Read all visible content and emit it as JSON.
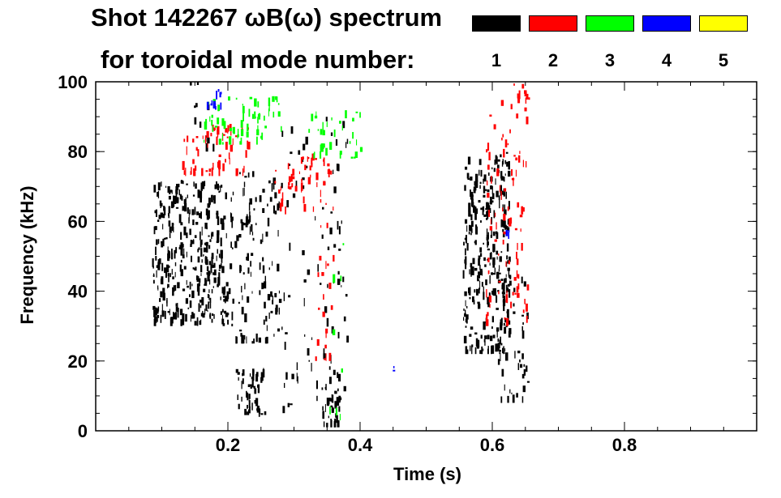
{
  "chart_data": {
    "type": "heatmap",
    "title_line1": "Shot 142267 ωB(ω) spectrum",
    "title_line2": "for toroidal mode number:",
    "xlabel": "Time (s)",
    "ylabel": "Frequency (kHz)",
    "xlim": [
      0.0,
      1.0
    ],
    "ylim": [
      0,
      100
    ],
    "xticks": [
      {
        "value": 0.2,
        "label": "0.2"
      },
      {
        "value": 0.4,
        "label": "0.4"
      },
      {
        "value": 0.6,
        "label": "0.6"
      },
      {
        "value": 0.8,
        "label": "0.8"
      }
    ],
    "yticks": [
      {
        "value": 0,
        "label": "0"
      },
      {
        "value": 20,
        "label": "20"
      },
      {
        "value": 40,
        "label": "40"
      },
      {
        "value": 60,
        "label": "60"
      },
      {
        "value": 80,
        "label": "80"
      },
      {
        "value": 100,
        "label": "100"
      }
    ],
    "legend": [
      {
        "mode": "1",
        "color": "#000000"
      },
      {
        "mode": "2",
        "color": "#ff0000"
      },
      {
        "mode": "3",
        "color": "#00ff00"
      },
      {
        "mode": "4",
        "color": "#0000ff"
      },
      {
        "mode": "5",
        "color": "#ffff00"
      }
    ],
    "regions": [
      {
        "mode": "1",
        "t": [
          0.085,
          0.195
        ],
        "f": [
          30,
          72
        ],
        "density": 0.85
      },
      {
        "mode": "1",
        "t": [
          0.195,
          0.28
        ],
        "f": [
          25,
          75
        ],
        "density": 0.35
      },
      {
        "mode": "1",
        "t": [
          0.21,
          0.255
        ],
        "f": [
          4,
          18
        ],
        "density": 0.9
      },
      {
        "mode": "1",
        "t": [
          0.28,
          0.38
        ],
        "f": [
          5,
          90
        ],
        "density": 0.12
      },
      {
        "mode": "1",
        "t": [
          0.34,
          0.37
        ],
        "f": [
          1,
          18
        ],
        "density": 0.85
      },
      {
        "mode": "1",
        "t": [
          0.555,
          0.625
        ],
        "f": [
          22,
          80
        ],
        "density": 0.85
      },
      {
        "mode": "1",
        "t": [
          0.605,
          0.655
        ],
        "f": [
          8,
          45
        ],
        "density": 0.35
      },
      {
        "mode": "1",
        "t": [
          0.14,
          0.18
        ],
        "f": [
          80,
          100
        ],
        "density": 0.15
      },
      {
        "mode": "2",
        "t": [
          0.13,
          0.23
        ],
        "f": [
          73,
          88
        ],
        "density": 0.5
      },
      {
        "mode": "2",
        "t": [
          0.27,
          0.36
        ],
        "f": [
          62,
          80
        ],
        "density": 0.35
      },
      {
        "mode": "2",
        "t": [
          0.33,
          0.36
        ],
        "f": [
          20,
          60
        ],
        "density": 0.2
      },
      {
        "mode": "2",
        "t": [
          0.59,
          0.655
        ],
        "f": [
          30,
          100
        ],
        "density": 0.25
      },
      {
        "mode": "3",
        "t": [
          0.16,
          0.28
        ],
        "f": [
          82,
          96
        ],
        "density": 0.45
      },
      {
        "mode": "3",
        "t": [
          0.32,
          0.4
        ],
        "f": [
          78,
          92
        ],
        "density": 0.35
      },
      {
        "mode": "3",
        "t": [
          0.35,
          0.38
        ],
        "f": [
          3,
          60
        ],
        "density": 0.06
      },
      {
        "mode": "4",
        "t": [
          0.168,
          0.195
        ],
        "f": [
          92,
          100
        ],
        "density": 0.6
      },
      {
        "mode": "4",
        "t": [
          0.448,
          0.458
        ],
        "f": [
          17,
          21
        ],
        "density": 0.7
      },
      {
        "mode": "4",
        "t": [
          0.605,
          0.625
        ],
        "f": [
          55,
          60
        ],
        "density": 0.3
      }
    ]
  }
}
